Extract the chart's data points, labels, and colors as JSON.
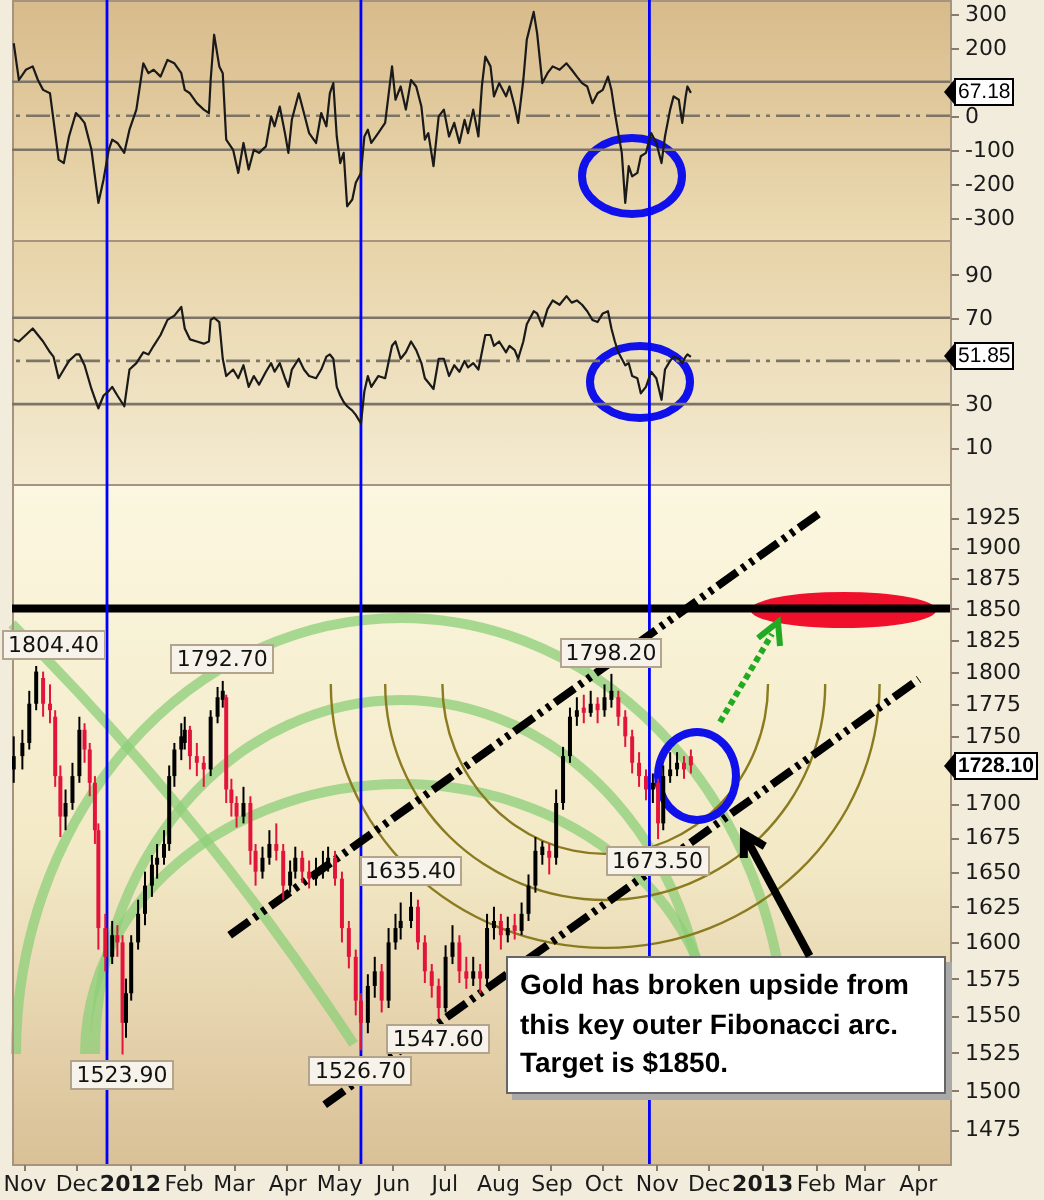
{
  "chart_data": [
    {
      "type": "line",
      "x": [
        "2011-10-26",
        "2011-10-29",
        "2011-11-02",
        "2011-11-06",
        "2011-11-09",
        "2011-11-12",
        "2011-11-16",
        "2011-11-18",
        "2011-11-21",
        "2011-11-24",
        "2011-11-27",
        "2011-12-01",
        "2011-12-03",
        "2011-12-06",
        "2011-12-10",
        "2011-12-14",
        "2011-12-17",
        "2011-12-20",
        "2011-12-22",
        "2011-12-25",
        "2011-12-29",
        "2012-01-01",
        "2012-01-05",
        "2012-01-09",
        "2012-01-12",
        "2012-01-15",
        "2012-01-19",
        "2012-01-23",
        "2012-01-27",
        "2012-01-31",
        "2012-02-02",
        "2012-02-05",
        "2012-02-09",
        "2012-02-13",
        "2012-02-16",
        "2012-02-17",
        "2012-02-19",
        "2012-02-22",
        "2012-02-24",
        "2012-02-26",
        "2012-03-01",
        "2012-03-04",
        "2012-03-07",
        "2012-03-10",
        "2012-03-13",
        "2012-03-16",
        "2012-03-20",
        "2012-03-23",
        "2012-03-25",
        "2012-03-28",
        "2012-03-31",
        "2012-04-02",
        "2012-04-04",
        "2012-04-08",
        "2012-04-11",
        "2012-04-14",
        "2012-04-18",
        "2012-04-21",
        "2012-04-24",
        "2012-04-26",
        "2012-04-28",
        "2012-04-30",
        "2012-05-02",
        "2012-05-04",
        "2012-05-06",
        "2012-05-09",
        "2012-05-11",
        "2012-05-14",
        "2012-05-16",
        "2012-05-18",
        "2012-05-20",
        "2012-05-24",
        "2012-05-28",
        "2012-06-01",
        "2012-06-03",
        "2012-06-06",
        "2012-06-09",
        "2012-06-12",
        "2012-06-15",
        "2012-06-18",
        "2012-06-20",
        "2012-06-22",
        "2012-06-25",
        "2012-06-28",
        "2012-07-01",
        "2012-07-04",
        "2012-07-07",
        "2012-07-10",
        "2012-07-13",
        "2012-07-15",
        "2012-07-18",
        "2012-07-21",
        "2012-07-23",
        "2012-07-25",
        "2012-07-28",
        "2012-07-30",
        "2012-08-02",
        "2012-08-06",
        "2012-08-08",
        "2012-08-11",
        "2012-08-13",
        "2012-08-16",
        "2012-08-18",
        "2012-08-22",
        "2012-08-24",
        "2012-08-27",
        "2012-08-30",
        "2012-09-02",
        "2012-09-06",
        "2012-09-10",
        "2012-09-13",
        "2012-09-16",
        "2012-09-19",
        "2012-09-22",
        "2012-09-25",
        "2012-09-28",
        "2012-10-01",
        "2012-10-04",
        "2012-10-06",
        "2012-10-08",
        "2012-10-10",
        "2012-10-12",
        "2012-10-14",
        "2012-10-16",
        "2012-10-18",
        "2012-10-21",
        "2012-10-23",
        "2012-10-26",
        "2012-10-29",
        "2012-11-01",
        "2012-11-04",
        "2012-11-06",
        "2012-11-09",
        "2012-11-11",
        "2012-11-14",
        "2012-11-16",
        "2012-11-18",
        "2012-11-19",
        "2012-11-21"
      ],
      "values": [
        213,
        105,
        135,
        145,
        105,
        76,
        66,
        -12,
        -129,
        -139,
        -61,
        8,
        -2,
        -21,
        -100,
        -256,
        -187,
        -100,
        -70,
        -80,
        -109,
        -41,
        18,
        154,
        125,
        135,
        115,
        164,
        154,
        125,
        76,
        66,
        37,
        18,
        8,
        105,
        238,
        145,
        125,
        -70,
        -100,
        -168,
        -80,
        -158,
        -100,
        -109,
        -90,
        -2,
        -31,
        27,
        -51,
        -109,
        -12,
        66,
        8,
        -51,
        -80,
        8,
        -31,
        66,
        96,
        -61,
        -139,
        -109,
        -266,
        -246,
        -197,
        -168,
        -61,
        -41,
        -80,
        -51,
        -21,
        145,
        47,
        86,
        18,
        105,
        86,
        27,
        -70,
        -51,
        -148,
        -2,
        18,
        -61,
        -21,
        -80,
        -12,
        -51,
        18,
        -61,
        86,
        174,
        145,
        57,
        96,
        57,
        86,
        27,
        -21,
        105,
        223,
        305,
        242,
        96,
        125,
        145,
        135,
        154,
        135,
        115,
        96,
        86,
        37,
        66,
        76,
        115,
        76,
        8,
        -51,
        -109,
        -256,
        -148,
        -178,
        -168,
        -119,
        -109,
        -51,
        -80,
        -139,
        -61,
        18,
        57,
        47,
        -21,
        57,
        86,
        67.18
      ],
      "color": "#1a1a1a",
      "xlim": [
        "2011-10-25",
        "2013-04-20"
      ],
      "ylim": [
        -365,
        340
      ],
      "yticks": [
        300,
        200,
        {
          "value": 100,
          "label": null
        },
        0,
        -100,
        -200,
        -300
      ],
      "tick_labels": "y",
      "ref_lines": [
        {
          "axis": "y",
          "value": 100,
          "color": "#7d7468"
        },
        {
          "axis": "y",
          "value": 0,
          "color": "#7d7468",
          "line_style": "dashed"
        },
        {
          "axis": "y",
          "value": -100,
          "color": "#7d7468"
        },
        {
          "axis": "x",
          "value": "2011-12-19",
          "color": "#0000ff"
        },
        {
          "axis": "x",
          "value": "2012-05-14",
          "color": "#0000ff"
        },
        {
          "axis": "x",
          "value": "2012-10-28",
          "color": "#0000ff"
        }
      ],
      "annotations": [
        "67.18"
      ]
    },
    {
      "type": "line",
      "x": [
        "2011-10-26",
        "2011-10-29",
        "2011-11-02",
        "2011-11-06",
        "2011-11-09",
        "2011-11-12",
        "2011-11-16",
        "2011-11-18",
        "2011-11-21",
        "2011-11-24",
        "2011-11-27",
        "2011-12-01",
        "2011-12-03",
        "2011-12-06",
        "2011-12-10",
        "2011-12-14",
        "2011-12-17",
        "2011-12-20",
        "2011-12-22",
        "2011-12-25",
        "2011-12-29",
        "2012-01-01",
        "2012-01-05",
        "2012-01-09",
        "2012-01-12",
        "2012-01-15",
        "2012-01-19",
        "2012-01-23",
        "2012-01-27",
        "2012-01-31",
        "2012-02-02",
        "2012-02-05",
        "2012-02-09",
        "2012-02-13",
        "2012-02-16",
        "2012-02-17",
        "2012-02-19",
        "2012-02-22",
        "2012-02-24",
        "2012-02-26",
        "2012-03-01",
        "2012-03-04",
        "2012-03-07",
        "2012-03-10",
        "2012-03-13",
        "2012-03-16",
        "2012-03-20",
        "2012-03-23",
        "2012-03-25",
        "2012-03-28",
        "2012-03-31",
        "2012-04-02",
        "2012-04-04",
        "2012-04-08",
        "2012-04-11",
        "2012-04-14",
        "2012-04-18",
        "2012-04-21",
        "2012-04-24",
        "2012-04-26",
        "2012-04-28",
        "2012-04-30",
        "2012-05-02",
        "2012-05-04",
        "2012-05-06",
        "2012-05-09",
        "2012-05-11",
        "2012-05-14",
        "2012-05-16",
        "2012-05-18",
        "2012-05-20",
        "2012-05-24",
        "2012-05-28",
        "2012-06-01",
        "2012-06-03",
        "2012-06-06",
        "2012-06-09",
        "2012-06-12",
        "2012-06-15",
        "2012-06-18",
        "2012-06-20",
        "2012-06-22",
        "2012-06-25",
        "2012-06-28",
        "2012-07-01",
        "2012-07-04",
        "2012-07-07",
        "2012-07-10",
        "2012-07-13",
        "2012-07-15",
        "2012-07-18",
        "2012-07-21",
        "2012-07-23",
        "2012-07-25",
        "2012-07-28",
        "2012-07-30",
        "2012-08-02",
        "2012-08-06",
        "2012-08-08",
        "2012-08-11",
        "2012-08-13",
        "2012-08-16",
        "2012-08-18",
        "2012-08-22",
        "2012-08-24",
        "2012-08-27",
        "2012-08-30",
        "2012-09-02",
        "2012-09-06",
        "2012-09-10",
        "2012-09-13",
        "2012-09-16",
        "2012-09-19",
        "2012-09-22",
        "2012-09-25",
        "2012-09-28",
        "2012-10-01",
        "2012-10-04",
        "2012-10-06",
        "2012-10-08",
        "2012-10-10",
        "2012-10-12",
        "2012-10-14",
        "2012-10-16",
        "2012-10-18",
        "2012-10-21",
        "2012-10-23",
        "2012-10-26",
        "2012-10-29",
        "2012-11-01",
        "2012-11-04",
        "2012-11-06",
        "2012-11-09",
        "2012-11-11",
        "2012-11-14",
        "2012-11-16",
        "2012-11-18",
        "2012-11-19",
        "2012-11-21"
      ],
      "values": [
        60,
        59,
        62,
        65,
        62,
        59,
        54,
        52,
        42,
        46,
        50,
        53,
        53,
        48,
        37,
        28,
        34,
        36,
        38,
        34,
        29,
        46,
        49,
        54,
        53,
        57,
        62,
        69,
        71,
        75,
        65,
        60,
        59,
        58,
        59,
        69,
        70,
        68,
        51,
        43,
        46,
        42,
        48,
        38,
        43,
        39,
        45,
        49,
        45,
        49,
        42,
        38,
        46,
        51,
        46,
        43,
        42,
        46,
        52,
        53,
        51,
        38,
        34,
        31,
        29,
        27,
        25,
        21,
        36,
        43,
        38,
        43,
        42,
        57,
        59,
        51,
        54,
        59,
        55,
        49,
        42,
        40,
        37,
        51,
        51,
        43,
        48,
        45,
        50,
        47,
        49,
        46,
        54,
        62,
        62,
        57,
        59,
        54,
        57,
        55,
        51,
        59,
        67,
        73,
        72,
        66,
        74,
        78,
        76,
        80,
        77,
        78,
        76,
        73,
        69,
        68,
        72,
        73,
        65,
        59,
        54,
        51,
        48,
        49,
        43,
        42,
        35,
        38,
        45,
        42,
        32,
        46,
        50,
        52,
        51,
        49,
        52,
        53,
        51.85
      ],
      "color": "#1a1a1a",
      "xlim": [
        "2011-10-25",
        "2013-04-20"
      ],
      "ylim": [
        -7,
        106
      ],
      "yticks": [
        90,
        70,
        {
          "value": 50,
          "label": null
        },
        30,
        10
      ],
      "tick_labels": "y",
      "ref_lines": [
        {
          "axis": "y",
          "value": 70,
          "color": "#7d7468"
        },
        {
          "axis": "y",
          "value": 50,
          "color": "#7d7468",
          "line_style": "dashed"
        },
        {
          "axis": "y",
          "value": 30,
          "color": "#7d7468"
        },
        {
          "axis": "x",
          "value": "2011-12-19",
          "color": "#0000ff"
        },
        {
          "axis": "x",
          "value": "2012-05-14",
          "color": "#0000ff"
        },
        {
          "axis": "x",
          "value": "2012-10-28",
          "color": "#0000ff"
        }
      ],
      "annotations": [
        "51.85"
      ]
    },
    {
      "type": "candlestick",
      "x": [
        "2011-10-26",
        "2011-10-31",
        "2011-11-04",
        "2011-11-08",
        "2011-11-12",
        "2011-11-16",
        "2011-11-19",
        "2011-11-22",
        "2011-11-25",
        "2011-11-29",
        "2011-12-03",
        "2011-12-06",
        "2011-12-09",
        "2011-12-12",
        "2011-12-14",
        "2011-12-18",
        "2011-12-22",
        "2011-12-25",
        "2011-12-28",
        "2011-12-30",
        "2012-01-02",
        "2012-01-06",
        "2012-01-10",
        "2012-01-14",
        "2012-01-17",
        "2012-01-21",
        "2012-01-24",
        "2012-01-27",
        "2012-01-31",
        "2012-02-02",
        "2012-02-05",
        "2012-02-09",
        "2012-02-13",
        "2012-02-17",
        "2012-02-21",
        "2012-02-24",
        "2012-02-26",
        "2012-02-29",
        "2012-03-03",
        "2012-03-07",
        "2012-03-11",
        "2012-03-14",
        "2012-03-18",
        "2012-03-22",
        "2012-03-26",
        "2012-03-30",
        "2012-04-03",
        "2012-04-06",
        "2012-04-10",
        "2012-04-14",
        "2012-04-18",
        "2012-04-22",
        "2012-04-25",
        "2012-04-29",
        "2012-05-03",
        "2012-05-07",
        "2012-05-11",
        "2012-05-14",
        "2012-05-18",
        "2012-05-22",
        "2012-05-26",
        "2012-05-30",
        "2012-06-03",
        "2012-06-06",
        "2012-06-12",
        "2012-06-16",
        "2012-06-20",
        "2012-06-24",
        "2012-06-28",
        "2012-07-02",
        "2012-07-06",
        "2012-07-10",
        "2012-07-14",
        "2012-07-18",
        "2012-07-22",
        "2012-07-26",
        "2012-07-30",
        "2012-08-03",
        "2012-08-07",
        "2012-08-11",
        "2012-08-15",
        "2012-08-19",
        "2012-08-23",
        "2012-08-27",
        "2012-08-31",
        "2012-09-04",
        "2012-09-08",
        "2012-09-12",
        "2012-09-16",
        "2012-09-20",
        "2012-09-24",
        "2012-09-28",
        "2012-10-02",
        "2012-10-06",
        "2012-10-10",
        "2012-10-14",
        "2012-10-18",
        "2012-10-22",
        "2012-10-26",
        "2012-10-30",
        "2012-11-02",
        "2012-11-05",
        "2012-11-09",
        "2012-11-13",
        "2012-11-17",
        "2012-11-21"
      ],
      "ohlc": [
        [
          1725,
          1750,
          1715,
          1735
        ],
        [
          1735,
          1755,
          1725,
          1745
        ],
        [
          1745,
          1785,
          1740,
          1775
        ],
        [
          1775,
          1804.4,
          1770,
          1800
        ],
        [
          1795,
          1800,
          1765,
          1775
        ],
        [
          1775,
          1790,
          1760,
          1770
        ],
        [
          1765,
          1770,
          1712,
          1720
        ],
        [
          1720,
          1728,
          1675,
          1690
        ],
        [
          1690,
          1710,
          1680,
          1700
        ],
        [
          1700,
          1730,
          1695,
          1720
        ],
        [
          1720,
          1765,
          1715,
          1755
        ],
        [
          1755,
          1760,
          1730,
          1740
        ],
        [
          1740,
          1745,
          1705,
          1715
        ],
        [
          1715,
          1720,
          1670,
          1680
        ],
        [
          1680,
          1685,
          1595,
          1610
        ],
        [
          1610,
          1620,
          1580,
          1590
        ],
        [
          1590,
          1615,
          1585,
          1605
        ],
        [
          1605,
          1612,
          1590,
          1600
        ],
        [
          1600,
          1605,
          1523.9,
          1545
        ],
        [
          1545,
          1575,
          1535,
          1565
        ],
        [
          1565,
          1605,
          1560,
          1600
        ],
        [
          1600,
          1630,
          1595,
          1620
        ],
        [
          1620,
          1650,
          1612,
          1640
        ],
        [
          1640,
          1662,
          1632,
          1655
        ],
        [
          1655,
          1670,
          1645,
          1660
        ],
        [
          1660,
          1680,
          1655,
          1670
        ],
        [
          1670,
          1728,
          1665,
          1720
        ],
        [
          1720,
          1745,
          1712,
          1740
        ],
        [
          1740,
          1760,
          1732,
          1750
        ],
        [
          1745,
          1765,
          1740,
          1755
        ],
        [
          1755,
          1758,
          1725,
          1735
        ],
        [
          1735,
          1745,
          1720,
          1730
        ],
        [
          1730,
          1735,
          1712,
          1725
        ],
        [
          1725,
          1770,
          1720,
          1765
        ],
        [
          1765,
          1788,
          1760,
          1780
        ],
        [
          1778,
          1792.7,
          1772,
          1785
        ],
        [
          1780,
          1782,
          1700,
          1710
        ],
        [
          1710,
          1718,
          1690,
          1700
        ],
        [
          1700,
          1705,
          1682,
          1690
        ],
        [
          1690,
          1712,
          1685,
          1700
        ],
        [
          1700,
          1705,
          1655,
          1665
        ],
        [
          1665,
          1670,
          1640,
          1650
        ],
        [
          1650,
          1668,
          1645,
          1660
        ],
        [
          1660,
          1680,
          1655,
          1670
        ],
        [
          1670,
          1685,
          1658,
          1665
        ],
        [
          1665,
          1670,
          1630,
          1640
        ],
        [
          1640,
          1658,
          1635,
          1650
        ],
        [
          1650,
          1668,
          1645,
          1660
        ],
        [
          1660,
          1665,
          1642,
          1650
        ],
        [
          1650,
          1658,
          1638,
          1645
        ],
        [
          1645,
          1660,
          1640,
          1650
        ],
        [
          1650,
          1665,
          1645,
          1655
        ],
        [
          1655,
          1668,
          1650,
          1660
        ],
        [
          1660,
          1665,
          1640,
          1645
        ],
        [
          1645,
          1650,
          1600,
          1610
        ],
        [
          1610,
          1615,
          1582,
          1590
        ],
        [
          1590,
          1595,
          1550,
          1560
        ],
        [
          1560,
          1565,
          1526.7,
          1545
        ],
        [
          1545,
          1578,
          1538,
          1570
        ],
        [
          1570,
          1590,
          1562,
          1580
        ],
        [
          1580,
          1585,
          1552,
          1560
        ],
        [
          1560,
          1610,
          1555,
          1600
        ],
        [
          1600,
          1620,
          1595,
          1610
        ],
        [
          1610,
          1628,
          1602,
          1615
        ],
        [
          1615,
          1635.4,
          1610,
          1625
        ],
        [
          1625,
          1630,
          1595,
          1600
        ],
        [
          1600,
          1605,
          1572,
          1580
        ],
        [
          1580,
          1585,
          1562,
          1570
        ],
        [
          1570,
          1575,
          1547.6,
          1555
        ],
        [
          1555,
          1598,
          1552,
          1590
        ],
        [
          1590,
          1612,
          1585,
          1600
        ],
        [
          1600,
          1605,
          1572,
          1580
        ],
        [
          1580,
          1590,
          1568,
          1575
        ],
        [
          1575,
          1590,
          1570,
          1580
        ],
        [
          1580,
          1585,
          1565,
          1575
        ],
        [
          1575,
          1620,
          1570,
          1610
        ],
        [
          1610,
          1625,
          1602,
          1615
        ],
        [
          1615,
          1620,
          1595,
          1605
        ],
        [
          1605,
          1618,
          1600,
          1610
        ],
        [
          1612,
          1620,
          1602,
          1608
        ],
        [
          1608,
          1628,
          1605,
          1620
        ],
        [
          1620,
          1648,
          1615,
          1640
        ],
        [
          1640,
          1675,
          1635,
          1665
        ],
        [
          1662,
          1672,
          1655,
          1668
        ],
        [
          1665,
          1670,
          1648,
          1660
        ],
        [
          1660,
          1710,
          1655,
          1700
        ],
        [
          1700,
          1742,
          1695,
          1735
        ],
        [
          1735,
          1772,
          1730,
          1765
        ],
        [
          1765,
          1780,
          1758,
          1770
        ],
        [
          1772,
          1782,
          1760,
          1768
        ],
        [
          1768,
          1785,
          1765,
          1775
        ],
        [
          1775,
          1780,
          1760,
          1770
        ],
        [
          1770,
          1790,
          1765,
          1780
        ],
        [
          1778,
          1798.2,
          1772,
          1785
        ],
        [
          1780,
          1785,
          1758,
          1765
        ],
        [
          1765,
          1770,
          1742,
          1750
        ],
        [
          1750,
          1755,
          1722,
          1730
        ],
        [
          1730,
          1738,
          1712,
          1720
        ],
        [
          1720,
          1725,
          1702,
          1710
        ],
        [
          1710,
          1722,
          1700,
          1715
        ],
        [
          1715,
          1718,
          1673.5,
          1685
        ],
        [
          1685,
          1728,
          1680,
          1720
        ],
        [
          1720,
          1738,
          1715,
          1725
        ],
        [
          1725,
          1738,
          1720,
          1730
        ],
        [
          1730,
          1735,
          1718,
          1725
        ],
        [
          1735,
          1740,
          1722,
          1728.1
        ]
      ],
      "series": [
        {
          "type": "line",
          "x": [
            "2012-02-28",
            "2013-02-05"
          ],
          "values": [
            1605,
            1930
          ],
          "color": "#000000",
          "line_style": "dashed"
        },
        {
          "type": "line",
          "x": [
            "2012-04-23",
            "2013-04-02"
          ],
          "values": [
            1491,
            1794
          ],
          "color": "#000000",
          "line_style": "dashed"
        }
      ],
      "xlim": [
        "2011-10-25",
        "2013-04-20"
      ],
      "ylim": [
        1453,
        1953
      ],
      "log": "y",
      "xticks": [
        {
          "value": "2011-11-01",
          "label": "Nov"
        },
        {
          "value": "2011-12-01",
          "label": "Dec"
        },
        {
          "value": "2012-01-01",
          "label": "2012"
        },
        {
          "value": "2012-02-01",
          "label": "Feb"
        },
        {
          "value": "2012-03-01",
          "label": "Mar"
        },
        {
          "value": "2012-04-01",
          "label": "Apr"
        },
        {
          "value": "2012-05-01",
          "label": "May"
        },
        {
          "value": "2012-06-01",
          "label": "Jun"
        },
        {
          "value": "2012-07-01",
          "label": "Jul"
        },
        {
          "value": "2012-08-01",
          "label": "Aug"
        },
        {
          "value": "2012-09-01",
          "label": "Sep"
        },
        {
          "value": "2012-10-01",
          "label": "Oct"
        },
        {
          "value": "2012-11-01",
          "label": "Nov"
        },
        {
          "value": "2012-12-01",
          "label": "Dec"
        },
        {
          "value": "2013-01-01",
          "label": "2013"
        },
        {
          "value": "2013-02-01",
          "label": "Feb"
        },
        {
          "value": "2013-03-01",
          "label": "Mar"
        },
        {
          "value": "2013-04-01",
          "label": "Apr"
        }
      ],
      "yticks": [
        1925,
        1900,
        1875,
        1850,
        1825,
        1800,
        1775,
        1750,
        {
          "value": 1725,
          "label": null
        },
        1700,
        1675,
        1650,
        1625,
        1600,
        1575,
        1550,
        1525,
        1500,
        1475
      ],
      "ref_lines": [
        {
          "axis": "y",
          "value": 1850,
          "color": "#000000"
        },
        {
          "axis": "x",
          "value": "2011-12-19",
          "color": "#0000ff"
        },
        {
          "axis": "x",
          "value": "2012-05-14",
          "color": "#0000ff"
        },
        {
          "axis": "x",
          "value": "2012-10-28",
          "color": "#0000ff"
        }
      ],
      "annotations": [
        {
          "text": "1804.40",
          "x": "2011-11-08",
          "y": 1804.4
        },
        {
          "text": "1523.90",
          "x": "2011-12-28",
          "y": 1523.9
        },
        {
          "text": "1792.70",
          "x": "2012-02-24",
          "y": 1792.7
        },
        {
          "text": "1526.70",
          "x": "2012-05-14",
          "y": 1526.7
        },
        {
          "text": "1635.40",
          "x": "2012-06-12",
          "y": 1635.4
        },
        {
          "text": "1547.60",
          "x": "2012-06-28",
          "y": 1547.6
        },
        {
          "text": "1798.20",
          "x": "2012-10-06",
          "y": 1798.2
        },
        {
          "text": "1673.50",
          "x": "2012-11-02",
          "y": 1673.5
        },
        "1728.10",
        "Gold has broken upside from this key outer Fibonacci arc. Target is $1850."
      ]
    }
  ]
}
